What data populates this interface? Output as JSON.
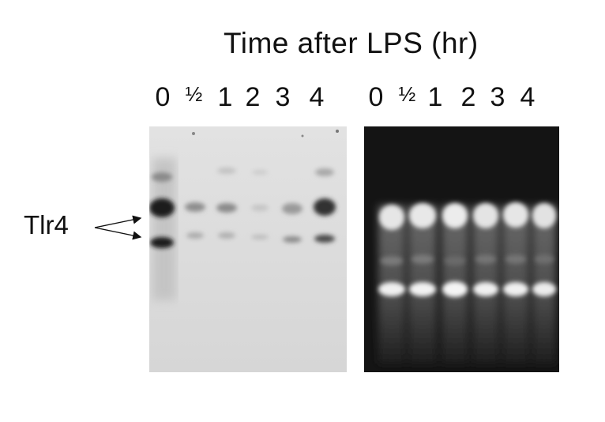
{
  "figure": {
    "title": "Time after LPS (hr)",
    "band_label": "Tlr4",
    "lanes_left": [
      "0",
      "½",
      "1",
      "2",
      "3",
      "4"
    ],
    "lanes_right": [
      "0",
      "½",
      "1",
      "2",
      "3",
      "4"
    ]
  },
  "colors": {
    "northern_bg": "#dcdcdc",
    "gel_bg": "#141414",
    "band_dark": "#1a1a1a",
    "band_light": "#f0f0f0"
  }
}
